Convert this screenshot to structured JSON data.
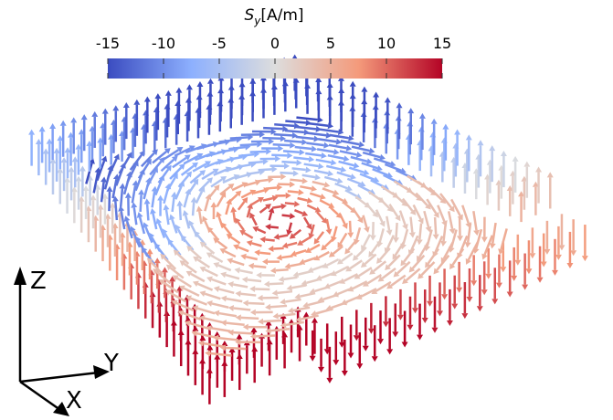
{
  "colorbar": {
    "title": {
      "symbol": "S",
      "subscript": "y",
      "unit": "[A/m]"
    },
    "range": [
      -15,
      15
    ],
    "ticks": [
      -15,
      -10,
      -5,
      0,
      5,
      10,
      15
    ],
    "colormap": [
      "#3b4cc0",
      "#8db0fe",
      "#dddddd",
      "#f49a7b",
      "#b40426"
    ]
  },
  "axes_triad": {
    "x": "X",
    "y": "Y",
    "z": "Z"
  }
}
